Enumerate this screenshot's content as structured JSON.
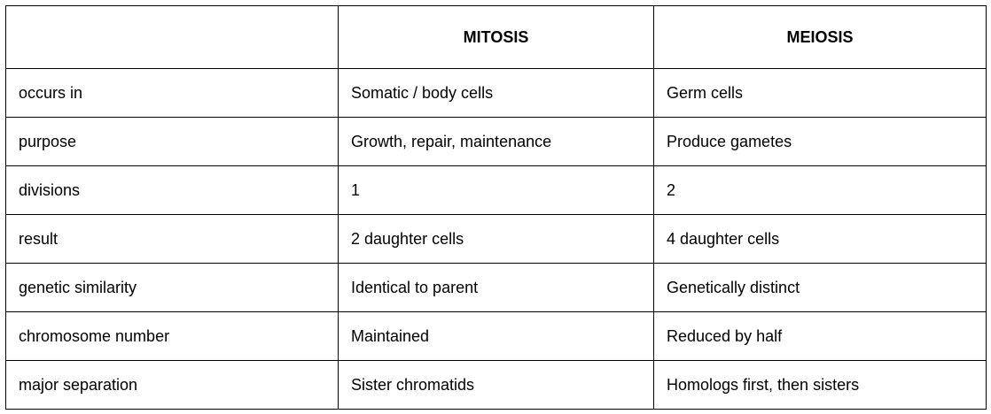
{
  "table": {
    "header": [
      "MITOSIS",
      "MEIOSIS"
    ],
    "rows": [
      [
        "occurs in",
        "Somatic / body cells",
        "Germ cells"
      ],
      [
        "purpose",
        "Growth, repair, maintenance",
        "Produce gametes"
      ],
      [
        "divisions",
        1,
        2
      ],
      [
        "result",
        "2 daughter cells",
        "4 daughter cells"
      ],
      [
        "genetic similarity",
        "Identical to parent",
        "Genetically distinct"
      ],
      [
        "chromosome number",
        "Maintained",
        "Reduced by half"
      ],
      [
        "major separation",
        "Sister chromatids",
        "Homologs first, then sisters"
      ]
    ]
  }
}
